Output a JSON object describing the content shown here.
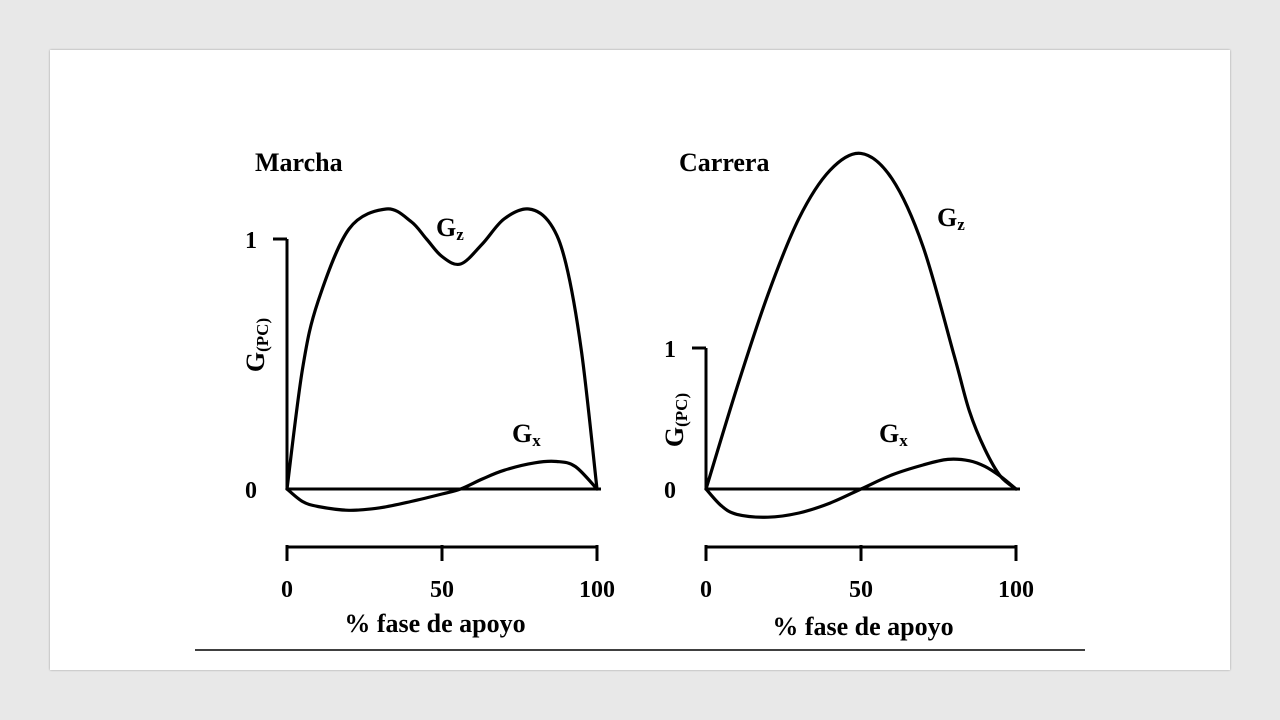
{
  "colors": {
    "background": "#e8e8e8",
    "slide": "#ffffff",
    "ink": "#000000"
  },
  "chart_data": [
    {
      "type": "line",
      "title": "Marcha",
      "xlabel": "% fase de apoyo",
      "ylabel_main": "G",
      "ylabel_sub": "(PC)",
      "x_ticks": [
        "0",
        "50",
        "100"
      ],
      "y_ticks": [
        "0",
        "1"
      ],
      "xlim": [
        0,
        100
      ],
      "series": [
        {
          "name": "Gz",
          "name_main": "G",
          "name_sub": "z",
          "x": [
            0,
            5,
            10,
            20,
            32,
            40,
            45,
            50,
            56,
            63,
            70,
            78,
            85,
            90,
            95,
            100
          ],
          "y": [
            0,
            0.48,
            0.75,
            1.04,
            1.12,
            1.07,
            1.0,
            0.93,
            0.9,
            0.98,
            1.08,
            1.12,
            1.06,
            0.9,
            0.55,
            0
          ]
        },
        {
          "name": "Gx",
          "name_main": "G",
          "name_sub": "x",
          "x": [
            0,
            5,
            10,
            20,
            30,
            40,
            50,
            56,
            63,
            70,
            80,
            87,
            93,
            100
          ],
          "y": [
            0,
            -0.05,
            -0.07,
            -0.085,
            -0.075,
            -0.05,
            -0.02,
            0,
            0.04,
            0.075,
            0.105,
            0.11,
            0.09,
            0
          ]
        }
      ]
    },
    {
      "type": "line",
      "title": "Carrera",
      "xlabel": "% fase de apoyo",
      "ylabel_main": "G",
      "ylabel_sub": "(PC)",
      "x_ticks": [
        "0",
        "50",
        "100"
      ],
      "y_ticks": [
        "0",
        "1"
      ],
      "xlim": [
        0,
        100
      ],
      "series": [
        {
          "name": "Gz",
          "name_main": "G",
          "name_sub": "z",
          "x": [
            0,
            10,
            20,
            30,
            40,
            50,
            60,
            70,
            80,
            85,
            90,
            95,
            100
          ],
          "y": [
            0,
            0.72,
            1.38,
            1.92,
            2.26,
            2.38,
            2.2,
            1.72,
            0.95,
            0.55,
            0.28,
            0.09,
            0
          ]
        },
        {
          "name": "Gx",
          "name_main": "G",
          "name_sub": "x",
          "x": [
            0,
            5,
            10,
            20,
            30,
            40,
            50,
            60,
            70,
            78,
            85,
            90,
            95,
            100
          ],
          "y": [
            0,
            -0.12,
            -0.18,
            -0.2,
            -0.17,
            -0.1,
            0,
            0.1,
            0.17,
            0.21,
            0.2,
            0.16,
            0.09,
            0
          ]
        }
      ]
    }
  ]
}
